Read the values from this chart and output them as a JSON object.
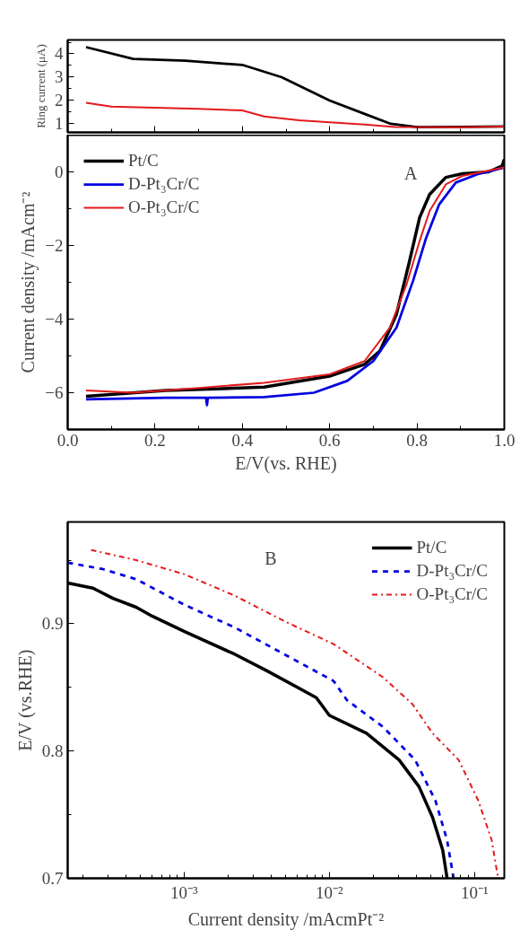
{
  "chart_data": [
    {
      "type": "line",
      "ylabel": "Ring current (μA)",
      "xlim": [
        0,
        1.0
      ],
      "ylim": [
        0.6,
        4.6
      ],
      "xticks": [
        0,
        0.2,
        0.4,
        0.6,
        0.8,
        1.0
      ],
      "yticks": [
        1,
        2,
        3,
        4
      ],
      "tick_labels": "y",
      "grid": false,
      "series": [
        {
          "color": "#000000",
          "x": [
            0.042,
            0.15,
            0.27,
            0.4,
            0.49,
            0.6,
            0.68,
            0.74,
            0.8,
            0.9,
            1.0
          ],
          "values": [
            4.29,
            3.78,
            3.7,
            3.52,
            2.99,
            1.98,
            1.4,
            0.97,
            0.83,
            0.84,
            0.86
          ]
        },
        {
          "color": "#e31a1c",
          "x": [
            0.042,
            0.1,
            0.3,
            0.4,
            0.45,
            0.53,
            0.6,
            0.68,
            0.75,
            0.9,
            1.0
          ],
          "values": [
            1.88,
            1.72,
            1.62,
            1.55,
            1.29,
            1.12,
            1.04,
            0.94,
            0.83,
            0.82,
            0.85
          ]
        }
      ]
    },
    {
      "type": "line",
      "xlabel": "E/V(vs. RHE)",
      "ylabel": "Current density /mAcm⁻²",
      "annotations": [
        "A"
      ],
      "xlim": [
        0,
        1.0
      ],
      "ylim": [
        -7,
        1
      ],
      "xticks": [
        {
          "value": 0,
          "label": "0.0"
        },
        0.2,
        0.4,
        0.6,
        0.8,
        {
          "value": 1.0,
          "label": "1.0"
        }
      ],
      "yticks": [
        -6,
        -4,
        -2,
        0
      ],
      "grid": false,
      "legend": "top left",
      "series": [
        {
          "name": "Pt/C",
          "color": "#000000",
          "x": [
            0.042,
            0.224,
            0.45,
            0.6,
            0.68,
            0.715,
            0.753,
            0.783,
            0.806,
            0.829,
            0.866,
            0.904,
            0.964,
            0.995,
            1.0
          ],
          "values": [
            -6.1,
            -5.94,
            -5.85,
            -5.55,
            -5.23,
            -4.87,
            -3.87,
            -2.42,
            -1.24,
            -0.61,
            -0.15,
            -0.05,
            0,
            0.16,
            0.34
          ]
        },
        {
          "name": "D-Pt₃Cr/C",
          "color": "#0000e0",
          "x": [
            0.042,
            0.224,
            0.317,
            0.319,
            0.321,
            0.45,
            0.564,
            0.64,
            0.7,
            0.753,
            0.791,
            0.821,
            0.851,
            0.889,
            0.942,
            1.0
          ],
          "values": [
            -6.18,
            -6.14,
            -6.14,
            -6.34,
            -6.14,
            -6.12,
            -6.0,
            -5.68,
            -5.14,
            -4.23,
            -2.96,
            -1.79,
            -0.88,
            -0.29,
            -0.05,
            0.12
          ]
        },
        {
          "name": "O-Pt₃Cr/C",
          "color": "#e31a1c",
          "x": [
            0.042,
            0.149,
            0.3,
            0.45,
            0.6,
            0.68,
            0.738,
            0.776,
            0.806,
            0.829,
            0.866,
            0.904,
            0.942,
            1.0
          ],
          "values": [
            -5.94,
            -6.0,
            -5.87,
            -5.73,
            -5.5,
            -5.14,
            -4.23,
            -3.06,
            -1.88,
            -1.06,
            -0.34,
            -0.11,
            -0.02,
            0.12
          ]
        }
      ]
    },
    {
      "type": "line",
      "xlabel": "Current density /mAcmPt⁻²",
      "ylabel": "E/V (vs.RHE)",
      "annotations": [
        "B"
      ],
      "log": "x",
      "xlim": [
        0.000158,
        0.16
      ],
      "ylim": [
        0.7,
        0.98
      ],
      "xticks": [
        {
          "value": 0.001,
          "label": "10⁻³"
        },
        {
          "value": 0.01,
          "label": "10⁻²"
        },
        {
          "value": 0.1,
          "label": "10⁻¹"
        }
      ],
      "yticks": [
        0.7,
        0.8,
        0.9
      ],
      "grid": false,
      "legend": "top right",
      "series": [
        {
          "name": "Pt/C",
          "color": "#000000",
          "line_style": "solid",
          "x": [
            0.000158,
            0.000236,
            0.000324,
            0.000468,
            0.000603,
            0.001,
            0.00224,
            0.00372,
            0.00813,
            0.01,
            0.018,
            0.0302,
            0.0414,
            0.0513,
            0.0603,
            0.0646
          ],
          "values": [
            0.932,
            0.928,
            0.92,
            0.913,
            0.906,
            0.894,
            0.876,
            0.863,
            0.842,
            0.828,
            0.814,
            0.793,
            0.772,
            0.748,
            0.722,
            0.7
          ]
        },
        {
          "name": "D-Pt₃Cr/C",
          "color": "#0000e0",
          "line_style": "dashed",
          "x": [
            0.000158,
            0.000275,
            0.000468,
            0.001,
            0.00224,
            0.0049,
            0.0107,
            0.0132,
            0.0234,
            0.0389,
            0.0537,
            0.0646,
            0.0716
          ],
          "values": [
            0.948,
            0.943,
            0.935,
            0.915,
            0.897,
            0.876,
            0.855,
            0.84,
            0.819,
            0.793,
            0.761,
            0.73,
            0.7
          ]
        },
        {
          "name": "O-Pt₃Cr/C",
          "color": "#e31a1c",
          "line_style": "dashdot",
          "x": [
            0.000229,
            0.000468,
            0.001,
            0.00224,
            0.0049,
            0.0107,
            0.0234,
            0.0372,
            0.0513,
            0.0776,
            0.106,
            0.131,
            0.145
          ],
          "values": [
            0.958,
            0.95,
            0.939,
            0.922,
            0.902,
            0.884,
            0.858,
            0.837,
            0.814,
            0.793,
            0.761,
            0.73,
            0.7
          ]
        }
      ]
    }
  ]
}
